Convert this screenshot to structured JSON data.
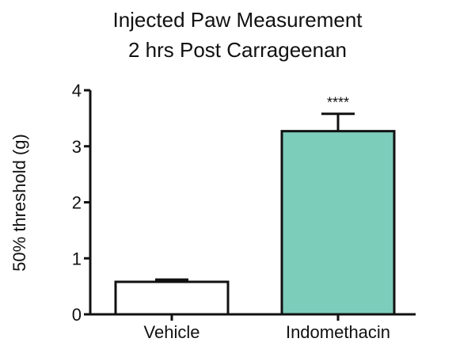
{
  "chart_data": {
    "type": "bar",
    "title": [
      "Injected Paw Measurement",
      "2 hrs Post Carrageenan"
    ],
    "xlabel": "",
    "ylabel": "50% threshold (g)",
    "ylim": [
      0,
      4
    ],
    "yticks": [
      0,
      1,
      2,
      3,
      4
    ],
    "categories": [
      "Vehicle",
      "Indomethacin"
    ],
    "values": [
      0.58,
      3.27
    ],
    "errors": [
      0.04,
      0.31
    ],
    "annotations": [
      "",
      "****"
    ],
    "colors": [
      "#ffffff",
      "#7dcdbb"
    ],
    "grid": false,
    "legend": "none"
  }
}
